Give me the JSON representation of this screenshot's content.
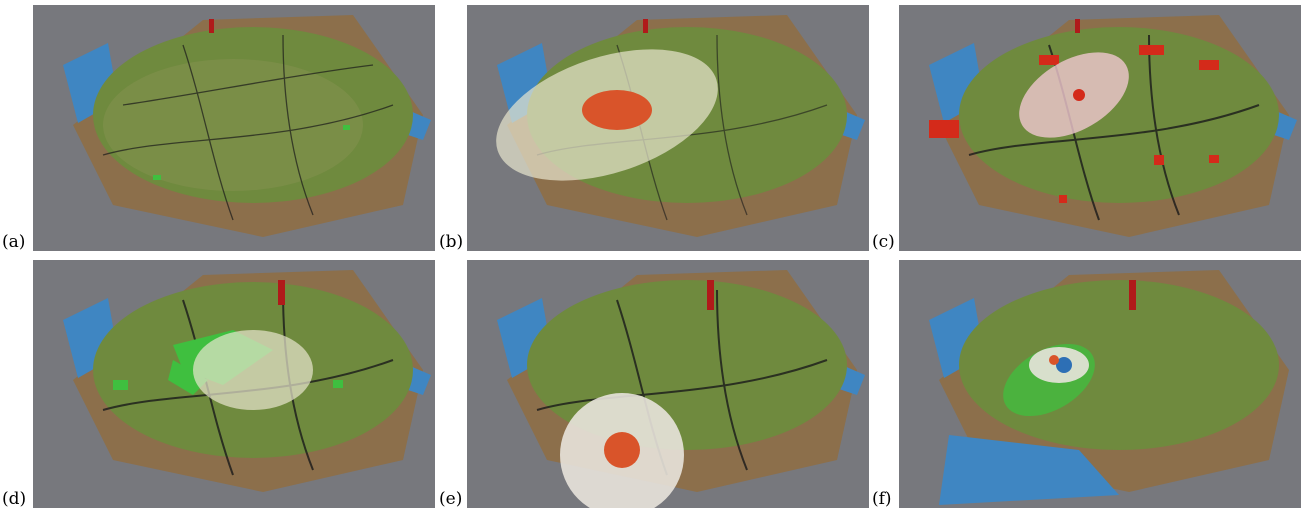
{
  "panels": [
    {
      "label": "(a)",
      "highlight": "none"
    },
    {
      "label": "(b)",
      "highlight": "orange-brush"
    },
    {
      "label": "(c)",
      "highlight": "red-selection"
    },
    {
      "label": "(d)",
      "highlight": "green-parks"
    },
    {
      "label": "(e)",
      "highlight": "edge-brush"
    },
    {
      "label": "(f)",
      "highlight": "terrain-deformed"
    }
  ],
  "colors": {
    "background": "#77787d",
    "ground": "#8c6f4b",
    "city": "#6f8a3e",
    "water": "#3f86c2",
    "road": "#1a1a1a",
    "park": "#3fbf3f",
    "selection_red": "#d42a1a",
    "brush_orange": "#d9542a",
    "brush_blue": "#2d6fb5"
  }
}
